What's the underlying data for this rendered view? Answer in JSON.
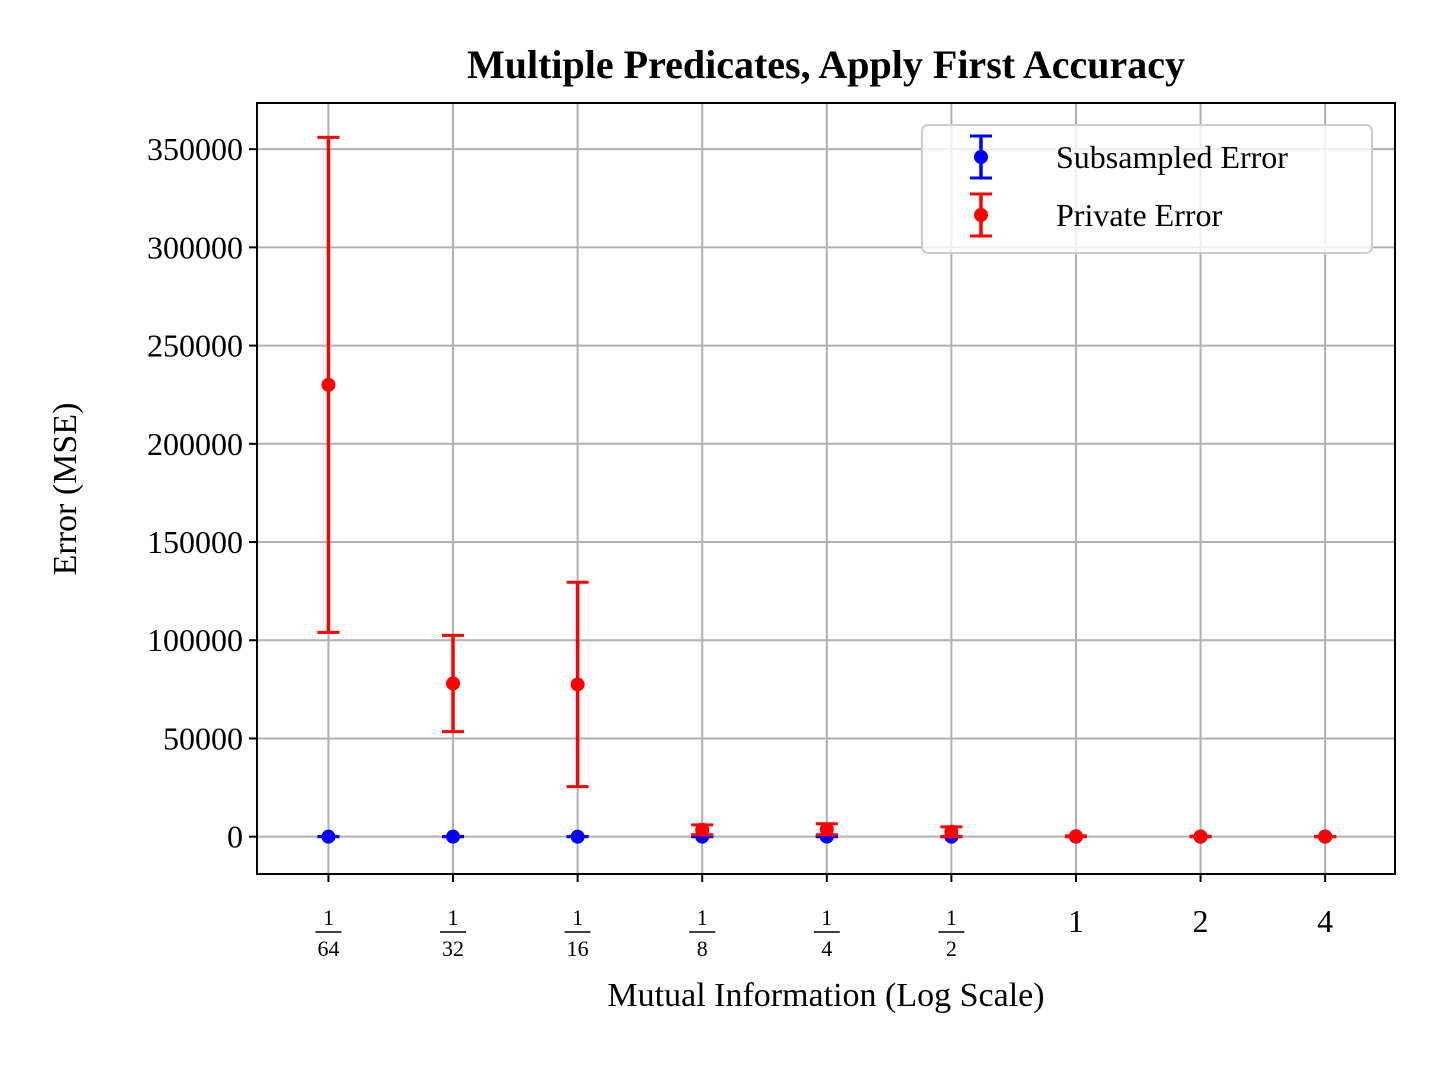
{
  "chart_data": {
    "type": "scatter",
    "title": "Multiple Predicates, Apply First Accuracy",
    "xlabel": "Mutual Information (Log Scale)",
    "ylabel": "Error (MSE)",
    "x_scale": "log2",
    "x_ticks": [
      {
        "value": 0.015625,
        "num": "1",
        "den": "64"
      },
      {
        "value": 0.03125,
        "num": "1",
        "den": "32"
      },
      {
        "value": 0.0625,
        "num": "1",
        "den": "16"
      },
      {
        "value": 0.125,
        "num": "1",
        "den": "8"
      },
      {
        "value": 0.25,
        "num": "1",
        "den": "4"
      },
      {
        "value": 0.5,
        "num": "1",
        "den": "2"
      },
      {
        "value": 1,
        "label": "1"
      },
      {
        "value": 2,
        "label": "2"
      },
      {
        "value": 4,
        "label": "4"
      }
    ],
    "y_ticks": [
      0,
      50000,
      100000,
      150000,
      200000,
      250000,
      300000,
      350000
    ],
    "ylim": [
      -19000,
      373500
    ],
    "xlim": [
      0.0105,
      5.9
    ],
    "grid": true,
    "legend_position": "top-right",
    "series": [
      {
        "name": "Subsampled Error",
        "color": "#0000ff",
        "x": [
          0.015625,
          0.03125,
          0.0625,
          0.125,
          0.25,
          0.5,
          1,
          2,
          4
        ],
        "y": [
          0,
          0,
          0,
          0,
          0,
          0,
          0,
          0,
          0
        ],
        "yerr_low": [
          0,
          0,
          0,
          0,
          0,
          0,
          0,
          0,
          0
        ],
        "yerr_high": [
          0,
          0,
          0,
          0,
          0,
          0,
          0,
          0,
          0
        ]
      },
      {
        "name": "Private Error",
        "color": "#ff0000",
        "x": [
          0.015625,
          0.03125,
          0.0625,
          0.125,
          0.25,
          0.5,
          1,
          2,
          4
        ],
        "y": [
          230000,
          78000,
          77500,
          3500,
          3800,
          2500,
          200,
          100,
          50
        ],
        "yerr_low": [
          126000,
          24500,
          52000,
          2500,
          2800,
          2500,
          200,
          100,
          50
        ],
        "yerr_high": [
          126000,
          24500,
          52000,
          2500,
          2800,
          2500,
          200,
          100,
          50
        ]
      }
    ]
  }
}
